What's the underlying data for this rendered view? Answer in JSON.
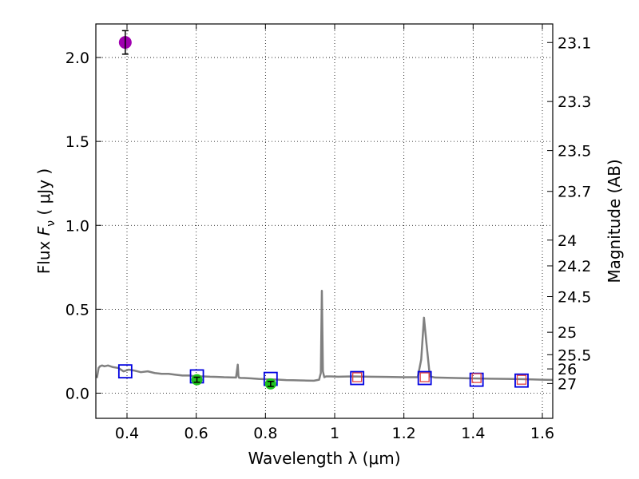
{
  "chart_data": {
    "type": "scatter",
    "xlabel": "Wavelength  λ (μm)",
    "ylabel": "Flux  F_ν  ( μJy )",
    "ylabel_parts": {
      "prefix": "Flux  ",
      "symbol": "F",
      "subscript": "ν",
      "unit": "  ( μJy )"
    },
    "y2label": "Magnitude (AB)",
    "xlim": [
      0.31,
      1.63
    ],
    "ylim": [
      -0.15,
      2.2
    ],
    "grid": true,
    "x_ticks": [
      0.4,
      0.6,
      0.8,
      1.0,
      1.2,
      1.4,
      1.6
    ],
    "x_tick_labels": [
      "0.4",
      "0.6",
      "0.8",
      "1",
      "1.2",
      "1.4",
      "1.6"
    ],
    "y_ticks": [
      0.0,
      0.5,
      1.0,
      1.5,
      2.0
    ],
    "y_tick_labels": [
      "0.0",
      "0.5",
      "1.0",
      "1.5",
      "2.0"
    ],
    "mag_ticks": [
      "23.1",
      "23.3",
      "23.5",
      "23.7",
      "24",
      "24.2",
      "24.5",
      "25",
      "25.5",
      "26",
      "27"
    ],
    "colors": {
      "model": "#808080",
      "photometry": "#a000b0",
      "measured": "#1fc21f",
      "model_band": "#0000e0",
      "band_flux": "#e04040",
      "errorbar": "#000000"
    },
    "series": [
      {
        "name": "model SED",
        "kind": "line",
        "x": [
          0.313,
          0.318,
          0.322,
          0.328,
          0.335,
          0.345,
          0.36,
          0.375,
          0.39,
          0.405,
          0.42,
          0.44,
          0.46,
          0.48,
          0.5,
          0.52,
          0.54,
          0.56,
          0.58,
          0.6,
          0.62,
          0.64,
          0.66,
          0.68,
          0.7,
          0.715,
          0.72,
          0.722,
          0.724,
          0.728,
          0.74,
          0.76,
          0.78,
          0.8,
          0.82,
          0.84,
          0.86,
          0.88,
          0.9,
          0.92,
          0.94,
          0.955,
          0.96,
          0.963,
          0.966,
          0.97,
          0.975,
          0.99,
          1.01,
          1.05,
          1.1,
          1.15,
          1.2,
          1.24,
          1.25,
          1.258,
          1.265,
          1.275,
          1.29,
          1.35,
          1.4,
          1.45,
          1.5,
          1.55,
          1.6,
          1.63
        ],
        "y": [
          0.09,
          0.15,
          0.16,
          0.165,
          0.16,
          0.165,
          0.155,
          0.15,
          0.13,
          0.14,
          0.135,
          0.125,
          0.13,
          0.12,
          0.115,
          0.115,
          0.11,
          0.105,
          0.105,
          0.1,
          0.1,
          0.098,
          0.097,
          0.095,
          0.094,
          0.093,
          0.17,
          0.1,
          0.092,
          0.091,
          0.09,
          0.088,
          0.085,
          0.083,
          0.082,
          0.08,
          0.078,
          0.077,
          0.076,
          0.075,
          0.074,
          0.08,
          0.12,
          0.61,
          0.13,
          0.095,
          0.1,
          0.1,
          0.098,
          0.1,
          0.098,
          0.097,
          0.095,
          0.095,
          0.2,
          0.45,
          0.3,
          0.1,
          0.093,
          0.09,
          0.088,
          0.086,
          0.085,
          0.083,
          0.08,
          0.079
        ]
      },
      {
        "name": "photometry (magenta)",
        "kind": "point",
        "x": [
          0.395
        ],
        "y": [
          2.09
        ],
        "yerr": [
          0.07
        ]
      },
      {
        "name": "measured (green)",
        "kind": "point",
        "x": [
          0.602,
          0.815
        ],
        "y": [
          0.08,
          0.055
        ],
        "yerr": [
          0.015,
          0.015
        ]
      },
      {
        "name": "model band flux (blue squares)",
        "kind": "square",
        "x": [
          0.395,
          0.602,
          0.815,
          1.065,
          1.26,
          1.41,
          1.54
        ],
        "y": [
          0.13,
          0.1,
          0.085,
          0.09,
          0.09,
          0.08,
          0.075
        ]
      },
      {
        "name": "band flux (red squares)",
        "kind": "square",
        "x": [
          1.065,
          1.26,
          1.41,
          1.54
        ],
        "y": [
          0.09,
          0.09,
          0.085,
          0.075
        ]
      }
    ]
  }
}
